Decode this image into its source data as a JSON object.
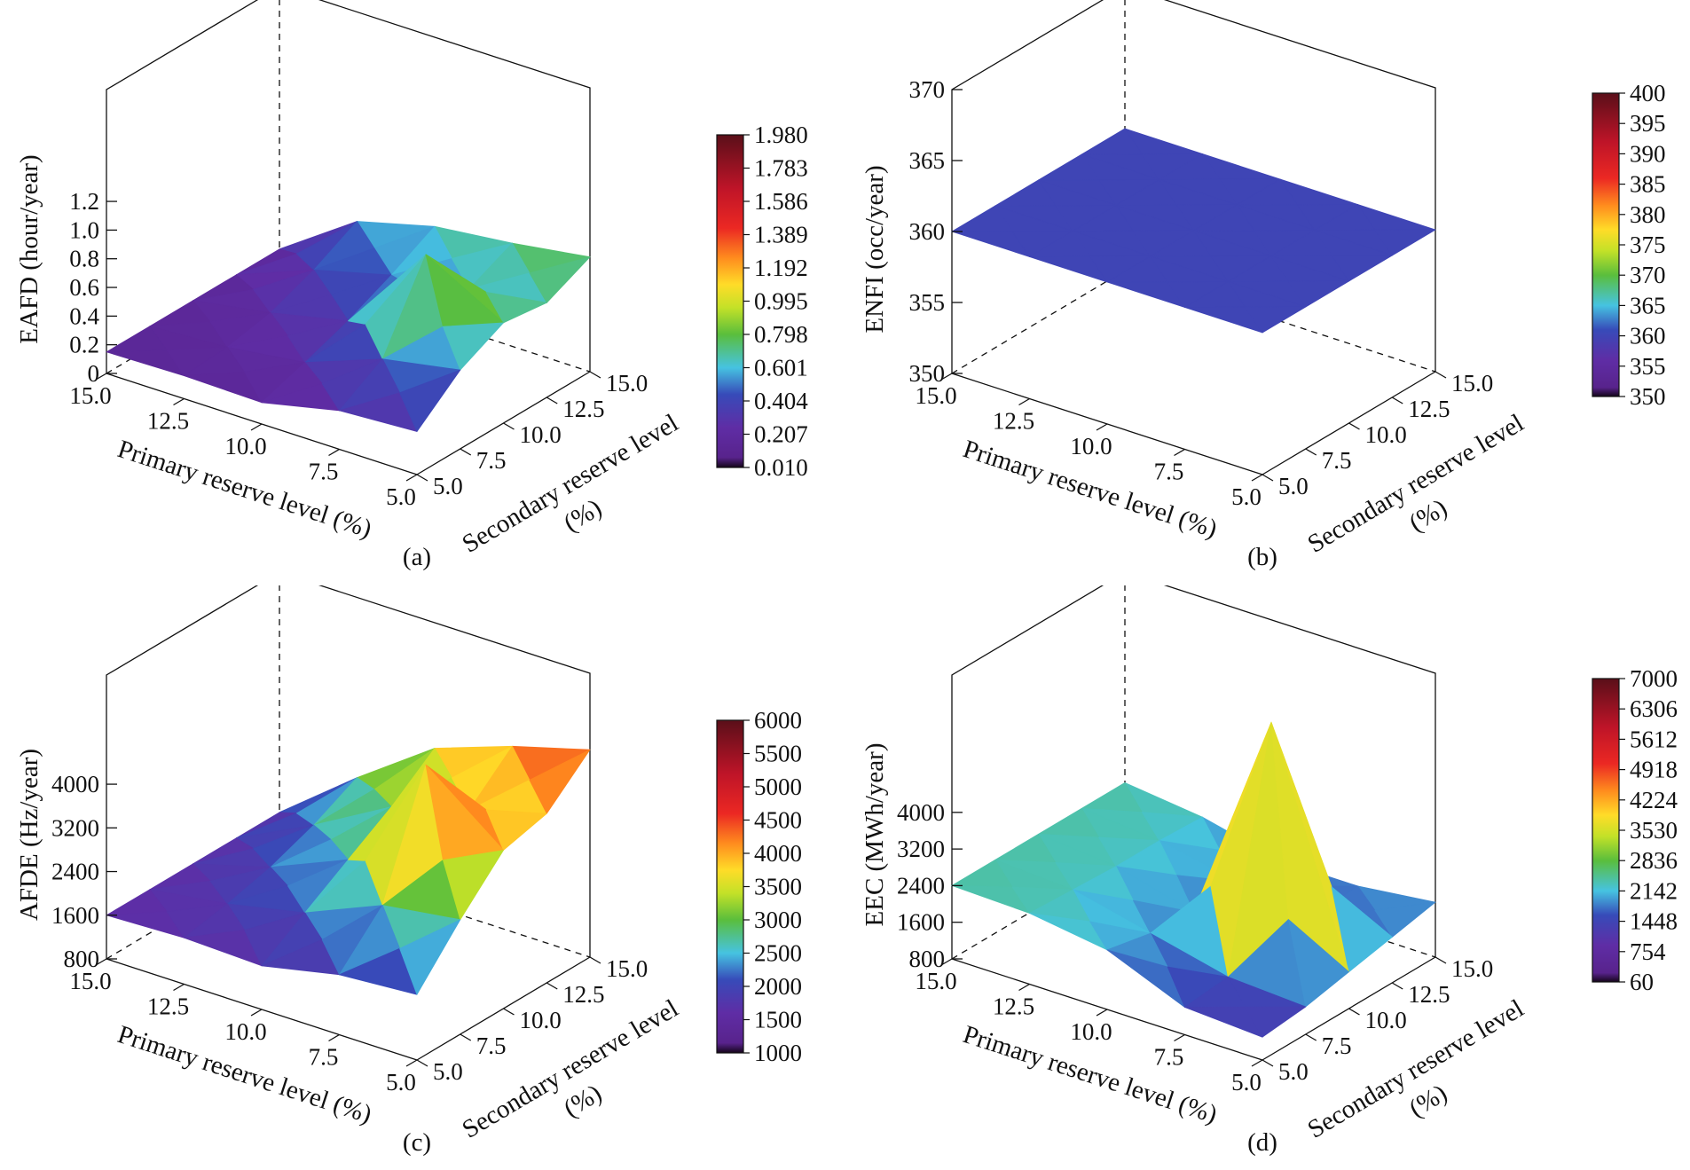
{
  "chart_data": [
    {
      "type": "surface",
      "caption": "(a)",
      "zlabel": "EAFD (hour/year)",
      "xlabel": "Primary reserve level (%)",
      "ylabel_line1": "Secondary reserve level",
      "ylabel_line2": "(%)",
      "primary_ticks": [
        "15.0",
        "12.5",
        "10.0",
        "7.5",
        "5.0"
      ],
      "secondary_ticks": [
        "15.0",
        "12.5",
        "10.0",
        "7.5",
        "5.0"
      ],
      "z_ticks": [
        "0",
        "0.2",
        "0.4",
        "0.6",
        "0.8",
        "1.0",
        "1.2"
      ],
      "z_range": [
        0,
        1.98
      ],
      "colorbar_ticks": [
        "1.980",
        "1.783",
        "1.586",
        "1.389",
        "1.192",
        "0.995",
        "0.798",
        "0.601",
        "0.404",
        "0.207",
        "0.010"
      ],
      "colorbar_range": [
        0.01,
        1.98
      ],
      "primary_levels": [
        15.0,
        12.5,
        10.0,
        7.5,
        5.0
      ],
      "secondary_levels": [
        5.0,
        7.5,
        10.0,
        12.5,
        15.0
      ],
      "z": [
        [
          0.15,
          0.15,
          0.15,
          0.15,
          0.15
        ],
        [
          0.16,
          0.18,
          0.24,
          0.36,
          0.52
        ],
        [
          0.15,
          0.25,
          0.36,
          0.5,
          0.66
        ],
        [
          0.27,
          0.45,
          1.0,
          0.58,
          0.72
        ],
        [
          0.3,
          0.55,
          0.7,
          0.66,
          0.8
        ]
      ]
    },
    {
      "type": "surface",
      "caption": "(b)",
      "zlabel": "ENFI (occ/year)",
      "xlabel": "Primary reserve level (%)",
      "ylabel_line1": "Secondary reserve level",
      "ylabel_line2": "(%)",
      "primary_ticks": [
        "15.0",
        "12.5",
        "10.0",
        "7.5",
        "5.0"
      ],
      "secondary_ticks": [
        "15.0",
        "12.5",
        "10.0",
        "7.5",
        "5.0"
      ],
      "z_ticks": [
        "350",
        "355",
        "360",
        "365",
        "370"
      ],
      "z_range": [
        350,
        370
      ],
      "colorbar_ticks": [
        "400",
        "395",
        "390",
        "385",
        "380",
        "375",
        "370",
        "365",
        "360",
        "355",
        "350"
      ],
      "colorbar_range": [
        350,
        400
      ],
      "primary_levels": [
        15.0,
        12.5,
        10.0,
        7.5,
        5.0
      ],
      "secondary_levels": [
        5.0,
        7.5,
        10.0,
        12.5,
        15.0
      ],
      "z": [
        [
          360,
          360,
          360,
          360,
          360
        ],
        [
          360,
          360,
          360,
          360,
          360
        ],
        [
          360,
          360,
          360,
          360,
          360
        ],
        [
          360,
          360,
          360,
          360,
          360
        ],
        [
          360,
          360,
          360,
          360,
          360
        ]
      ]
    },
    {
      "type": "surface",
      "caption": "(c)",
      "zlabel": "AFDE (Hz/year)",
      "xlabel": "Primary reserve level (%)",
      "ylabel_line1": "Secondary reserve level",
      "ylabel_line2": "(%)",
      "primary_ticks": [
        "15.0",
        "12.5",
        "10.0",
        "7.5",
        "5.0"
      ],
      "secondary_ticks": [
        "15.0",
        "12.5",
        "10.0",
        "7.5",
        "5.0"
      ],
      "z_ticks": [
        "800",
        "1600",
        "2400",
        "3200",
        "4000"
      ],
      "z_range": [
        800,
        6000
      ],
      "colorbar_ticks": [
        "6000",
        "5500",
        "5000",
        "4500",
        "4000",
        "3500",
        "3000",
        "2500",
        "2000",
        "1500",
        "1000"
      ],
      "colorbar_range": [
        1000,
        6000
      ],
      "primary_levels": [
        15.0,
        12.5,
        10.0,
        7.5,
        5.0
      ],
      "secondary_levels": [
        5.0,
        7.5,
        10.0,
        12.5,
        15.0
      ],
      "z": [
        [
          1600,
          1600,
          1600,
          1600,
          1600
        ],
        [
          1650,
          1800,
          2000,
          2300,
          2700
        ],
        [
          1600,
          2100,
          2600,
          3100,
          3700
        ],
        [
          1900,
          2700,
          4800,
          3500,
          4200
        ],
        [
          2000,
          2900,
          3700,
          3900,
          4600
        ]
      ]
    },
    {
      "type": "surface",
      "caption": "(d)",
      "zlabel": "EEC (MWh/year)",
      "xlabel": "Primary reserve level (%)",
      "ylabel_line1": "Secondary reserve level",
      "ylabel_line2": "(%)",
      "primary_ticks": [
        "15.0",
        "12.5",
        "10.0",
        "7.5",
        "5.0"
      ],
      "secondary_ticks": [
        "15.0",
        "12.5",
        "10.0",
        "7.5",
        "5.0"
      ],
      "z_ticks": [
        "800",
        "1600",
        "2400",
        "3200",
        "4000"
      ],
      "z_range": [
        800,
        7000
      ],
      "colorbar_ticks": [
        "7000",
        "6306",
        "5612",
        "4918",
        "4224",
        "3530",
        "2836",
        "2142",
        "1448",
        "754",
        "60"
      ],
      "colorbar_range": [
        60,
        7000
      ],
      "primary_levels": [
        15.0,
        12.5,
        10.0,
        7.5,
        5.0
      ],
      "secondary_levels": [
        5.0,
        7.5,
        10.0,
        12.5,
        15.0
      ],
      "z": [
        [
          2400,
          2400,
          2400,
          2400,
          2400
        ],
        [
          2350,
          2300,
          2250,
          2250,
          2200
        ],
        [
          2100,
          1900,
          1800,
          1900,
          1800
        ],
        [
          1400,
          1500,
          6500,
          1700,
          1800
        ],
        [
          1300,
          1400,
          1600,
          1800,
          2000
        ]
      ]
    }
  ]
}
